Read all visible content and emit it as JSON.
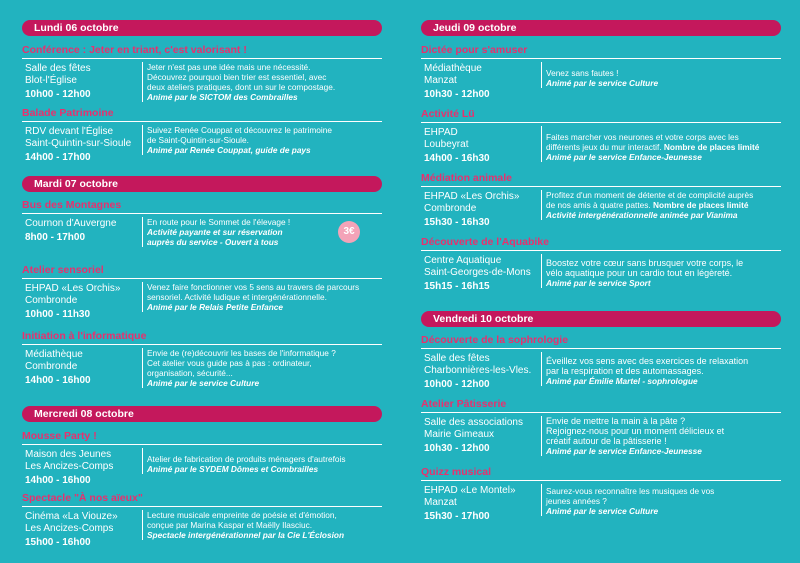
{
  "left": [
    {
      "day": "Lundi 06 octobre",
      "events": [
        {
          "title": "Conférence : Jeter en triant, c'est valorisant !",
          "loc": [
            "Salle des fêtes",
            "Blot-l'Église"
          ],
          "time": "10h00 - 12h00",
          "desc": [
            "Jeter n'est pas une idée mais une nécessité.",
            "Découvrez pourquoi bien trier est essentiel, avec",
            "deux ateliers pratiques, dont un sur le compostage."
          ],
          "animator": "Animé par le SICTOM des Combrailles"
        },
        {
          "title": "Balade Patrimoine",
          "loc": [
            "RDV devant l'Église",
            "Saint-Quintin-sur-Sioule"
          ],
          "time": "14h00 - 17h00",
          "desc": [
            "Suivez Renée Couppat et découvrez le patrimoine",
            "de Saint-Quintin-sur-Sioule."
          ],
          "animator": "Animé par Renée Couppat, guide de pays"
        }
      ]
    },
    {
      "day": "Mardi 07 octobre",
      "events": [
        {
          "title": "Bus des Montagnes",
          "loc": [
            "Cournon d'Auvergne"
          ],
          "time": "8h00 - 17h00",
          "desc": [
            "En route pour le Sommet de l'élevage !"
          ],
          "desc_italic": [
            "Activité payante et sur réservation",
            "auprès du service - Ouvert à tous"
          ],
          "badge": "3€"
        },
        {
          "title": "Atelier sensoriel",
          "loc": [
            "EHPAD «Les Orchis»",
            "Combronde"
          ],
          "time": "10h00 - 11h30",
          "desc": [
            "Venez faire fonctionner vos 5 sens au travers de parcours",
            "sensoriel. Activité ludique et intergénérationnelle."
          ],
          "animator": "Animé par le Relais Petite Enfance"
        },
        {
          "title": "Initiation à l'informatique",
          "loc": [
            "Médiathèque",
            "Combronde"
          ],
          "time": "14h00 - 16h00",
          "desc": [
            "Envie de (re)découvrir les bases de l'informatique ?",
            "Cet atelier vous guide pas à pas : ordinateur,",
            "organisation, sécurité..."
          ],
          "animator": "Animé par le service Culture"
        }
      ]
    },
    {
      "day": "Mercredi 08 octobre",
      "events": [
        {
          "title": "Mousse Party !",
          "loc": [
            "Maison des Jeunes",
            "Les Ancizes-Comps"
          ],
          "time": "14h00 - 16h00",
          "desc": [
            "Atelier de fabrication de produits ménagers d'autrefois"
          ],
          "animator": "Animé par le SYDEM Dômes et Combrailles"
        },
        {
          "title": "Spectacle \"À nos aïeux\"",
          "loc": [
            "Cinéma «La Viouze»",
            "Les Ancizes-Comps"
          ],
          "time": "15h00 - 16h00",
          "desc": [
            "Lecture musicale empreinte de poésie et d'émotion,",
            "conçue par Marina Kaspar et Maëlly Ilasciuc."
          ],
          "animator": "Spectacle intergénérationnel par la Cie L'Éclosion"
        }
      ]
    }
  ],
  "right": [
    {
      "day": "Jeudi 09 octobre",
      "events": [
        {
          "title": "Dictée pour s'amuser",
          "loc": [
            "Médiathèque",
            "Manzat"
          ],
          "time": "10h30 - 12h00",
          "desc": [
            "Venez sans fautes !"
          ],
          "animator": "Animé par le service Culture"
        },
        {
          "title": "Activité Lü",
          "loc": [
            "EHPAD",
            "Loubeyrat"
          ],
          "time": "14h00 - 16h30",
          "desc": [
            "Faites marcher vos neurones et votre corps avec les",
            "différents jeux du mur interactif."
          ],
          "desc_bold": "Nombre de places limité",
          "animator": "Animé par le service Enfance-Jeunesse"
        },
        {
          "title": "Médiation animale",
          "loc": [
            "EHPAD «Les Orchis»",
            "Combronde"
          ],
          "time": "15h30 - 16h30",
          "desc": [
            "Profitez d'un moment de détente et de complicité auprès",
            "de nos amis à quatre pattes."
          ],
          "desc_bold": "Nombre de places limité",
          "animator": "Activité intergénérationnelle animée par Vianima"
        },
        {
          "title": "Découverte de l'Aquabike",
          "loc": [
            "Centre Aquatique",
            "Saint-Georges-de-Mons"
          ],
          "time": "15h15 - 16h15",
          "desc": [
            "Boostez votre cœur sans brusquer votre corps, le",
            "vélo aquatique pour un cardio tout en légèreté."
          ],
          "animator": "Animé par le service Sport"
        }
      ]
    },
    {
      "day": "Vendredi 10 octobre",
      "events": [
        {
          "title": "Découverte de la sophrologie",
          "loc": [
            "Salle des fêtes",
            "Charbonnières-les-Vles."
          ],
          "time": "10h00 - 12h00",
          "desc": [
            "Éveillez vos sens avec des exercices de relaxation",
            "par la respiration et des automassages."
          ],
          "animator": "Animé par Émilie Martel - sophrologue"
        },
        {
          "title": "Atelier Pâtisserie",
          "loc": [
            "Salle des associations",
            "Mairie Gimeaux"
          ],
          "time": "10h30 - 12h00",
          "desc": [
            "Envie de mettre la main à la pâte ?",
            "Rejoignez-nous pour un moment délicieux et",
            "créatif autour de la pâtisserie !"
          ],
          "animator": "Animé par le service Enfance-Jeunesse"
        },
        {
          "title": "Quizz musical",
          "loc": [
            "EHPAD «Le Montel»",
            "Manzat"
          ],
          "time": "15h30 - 17h00",
          "desc": [
            "Saurez-vous reconnaître les musiques de vos",
            "jeunes années ?"
          ],
          "animator": "Animé par le service Culture"
        }
      ]
    }
  ]
}
